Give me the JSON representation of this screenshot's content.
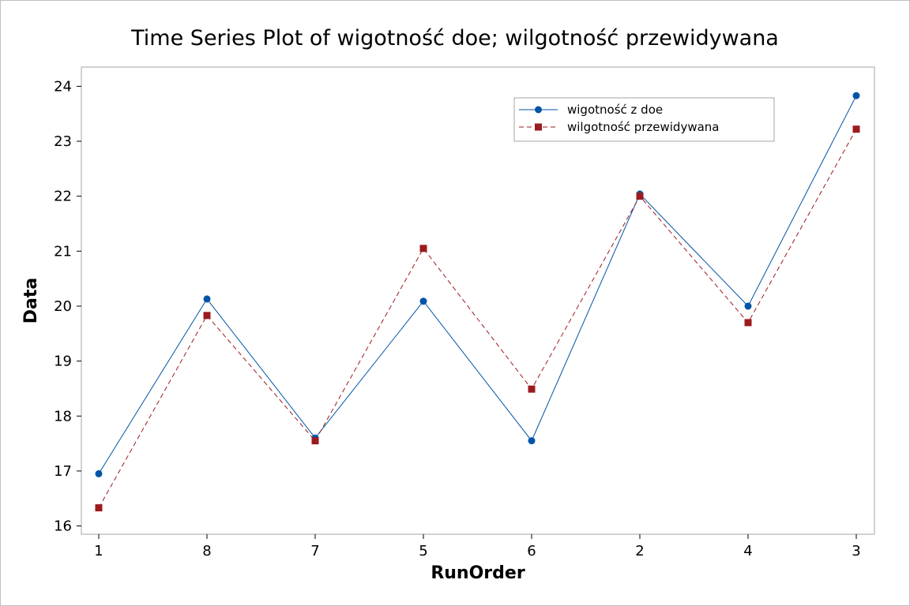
{
  "chart_data": {
    "type": "line",
    "title": "Time Series Plot of wigotność doe; wilgotność przewidywana",
    "xlabel": "RunOrder",
    "ylabel": "Data",
    "categories": [
      "1",
      "8",
      "7",
      "5",
      "6",
      "2",
      "4",
      "3"
    ],
    "ylim": [
      15.85,
      24.35
    ],
    "yticks": [
      16,
      17,
      18,
      19,
      20,
      21,
      22,
      23,
      24
    ],
    "grid": false,
    "legend_position": "top-right",
    "series": [
      {
        "name": "wigotność z doe",
        "values": [
          16.95,
          20.13,
          17.6,
          20.09,
          17.55,
          22.04,
          20.0,
          23.83
        ],
        "color": "#0054A6",
        "marker": "circle",
        "line_style": "solid"
      },
      {
        "name": "wilgotność przewidywana",
        "values": [
          16.33,
          19.83,
          17.55,
          21.05,
          18.49,
          22.0,
          19.7,
          23.22
        ],
        "color": "#9B1B1F",
        "marker": "square",
        "line_style": "dashed"
      }
    ]
  }
}
